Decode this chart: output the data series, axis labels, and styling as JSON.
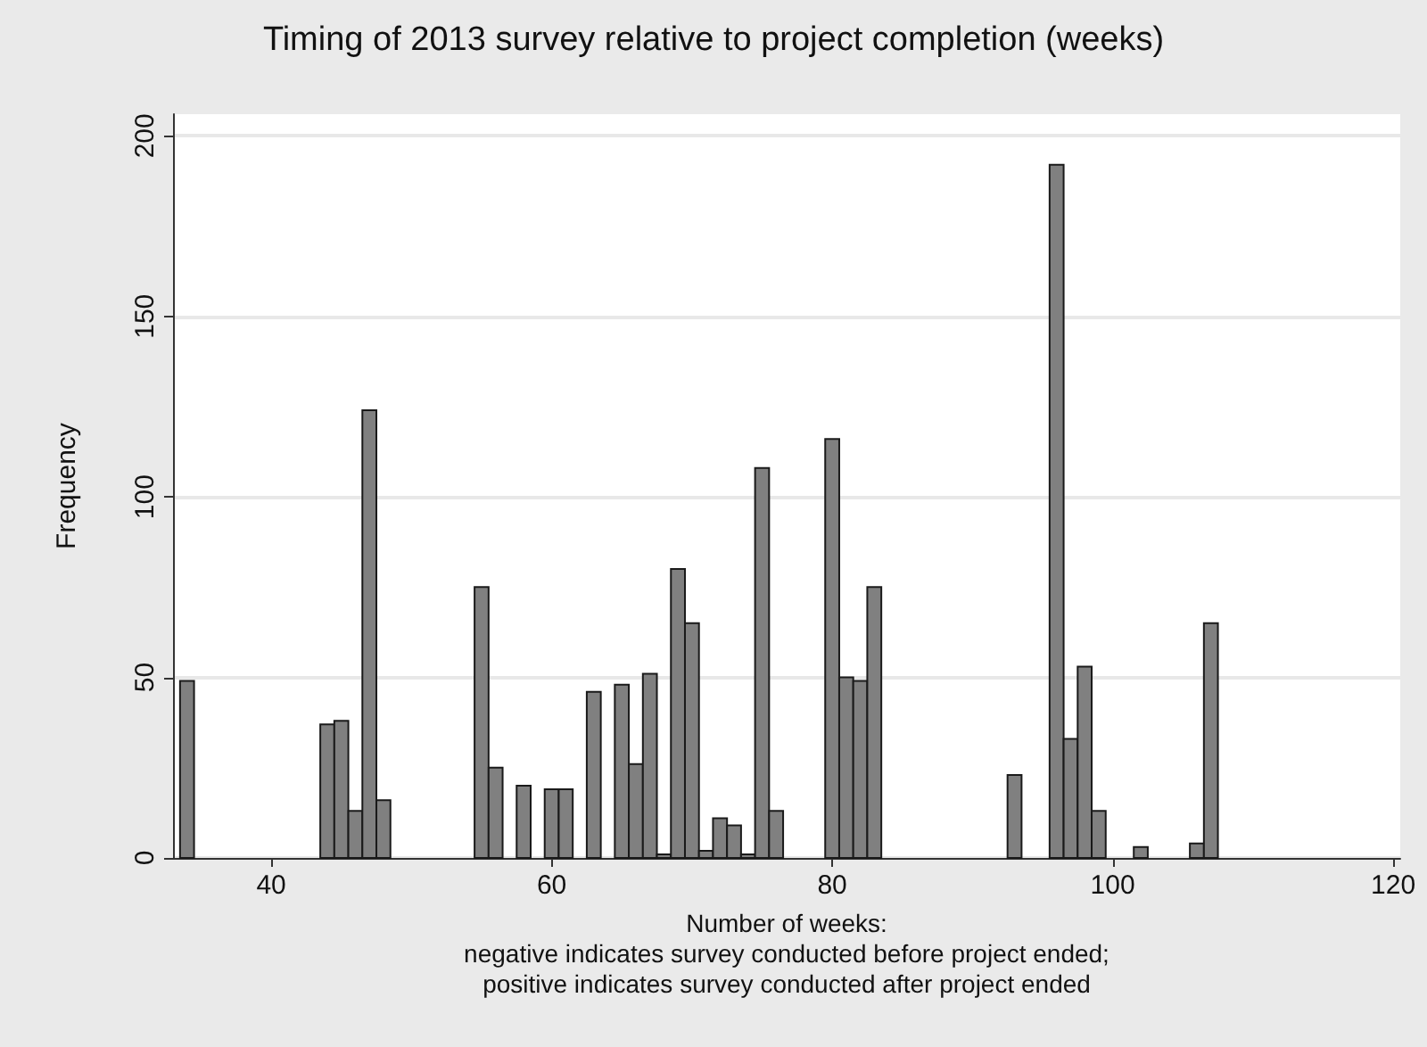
{
  "chart_data": {
    "type": "histogram",
    "title": "Timing of 2013 survey relative to project completion (weeks)",
    "xlabel": "Number of weeks:\nnegative indicates survey conducted before project ended;\npositive indicates survey conducted after project ended",
    "ylabel": "Frequency",
    "bins": [
      33.5,
      34.5,
      35.5,
      36.5,
      37.5,
      38.5,
      39.5,
      40.5,
      41.5,
      42.5,
      43.5,
      44.5,
      45.5,
      46.5,
      47.5,
      48.5,
      49.5,
      50.5,
      51.5,
      52.5,
      53.5,
      54.5,
      55.5,
      56.5,
      57.5,
      58.5,
      59.5,
      60.5,
      61.5,
      62.5,
      63.5,
      64.5,
      65.5,
      66.5,
      67.5,
      68.5,
      69.5,
      70.5,
      71.5,
      72.5,
      73.5,
      74.5,
      75.5,
      76.5,
      77.5,
      78.5,
      79.5,
      80.5,
      81.5,
      82.5,
      83.5,
      84.5,
      85.5,
      86.5,
      87.5,
      88.5,
      89.5,
      90.5,
      91.5,
      92.5,
      93.5,
      94.5,
      95.5,
      96.5,
      97.5,
      98.5,
      99.5,
      100.5,
      101.5,
      102.5,
      103.5,
      104.5,
      105.5,
      106.5,
      107.5
    ],
    "values": [
      49,
      0,
      0,
      0,
      0,
      0,
      0,
      0,
      0,
      0,
      37,
      38,
      13,
      124,
      16,
      0,
      0,
      0,
      0,
      0,
      0,
      75,
      25,
      0,
      20,
      0,
      19,
      19,
      0,
      46,
      0,
      48,
      26,
      51,
      1,
      80,
      65,
      2,
      11,
      9,
      1,
      108,
      13,
      0,
      0,
      0,
      116,
      50,
      49,
      75,
      0,
      0,
      0,
      0,
      0,
      0,
      0,
      0,
      0,
      23,
      0,
      0,
      192,
      33,
      53,
      13,
      0,
      0,
      3,
      0,
      0,
      0,
      4,
      65
    ],
    "color": "#808080",
    "xlim": [
      33,
      120.5
    ],
    "xticks": [
      40,
      60,
      80,
      100,
      120
    ],
    "ylim": [
      0,
      206
    ],
    "yticks": [
      0,
      50,
      100,
      150,
      200
    ],
    "grid": "y"
  }
}
